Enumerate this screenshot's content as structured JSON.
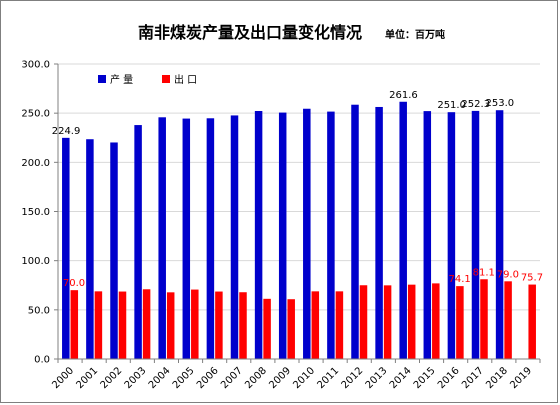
{
  "chart_data": {
    "type": "bar",
    "title": "南非煤炭产量及出口量变化情况",
    "unit_note": "单位：百万吨",
    "categories": [
      "2000",
      "2001",
      "2002",
      "2003",
      "2004",
      "2005",
      "2006",
      "2007",
      "2008",
      "2009",
      "2010",
      "2011",
      "2012",
      "2013",
      "2014",
      "2015",
      "2016",
      "2017",
      "2018",
      "2019"
    ],
    "series": [
      {
        "name": "产 量",
        "color": "#0000cc",
        "values": [
          224.9,
          223.5,
          220.2,
          237.9,
          245.8,
          244.5,
          244.8,
          247.7,
          252.2,
          250.6,
          254.5,
          251.6,
          258.6,
          256.3,
          261.6,
          252.1,
          251.0,
          252.3,
          253.0,
          null
        ],
        "labels": {
          "0": "224.9",
          "14": "261.6",
          "16": "251.0",
          "17": "252.3",
          "18": "253.0"
        }
      },
      {
        "name": "出 口",
        "color": "#ff0000",
        "values": [
          70.0,
          68.8,
          68.6,
          70.9,
          67.8,
          70.6,
          68.6,
          67.9,
          61.2,
          60.8,
          68.8,
          68.8,
          75.0,
          74.9,
          75.6,
          76.9,
          74.1,
          81.1,
          79.0,
          75.7
        ],
        "labels": {
          "0": "70.0",
          "16": "74.1",
          "17": "81.1",
          "18": "79.0",
          "19": "75.7"
        }
      }
    ],
    "ylim": [
      0,
      300
    ],
    "yticks": [
      "0.0",
      "50.0",
      "100.0",
      "150.0",
      "200.0",
      "250.0",
      "300.0"
    ],
    "grid": true,
    "legend_position": "top-left"
  }
}
